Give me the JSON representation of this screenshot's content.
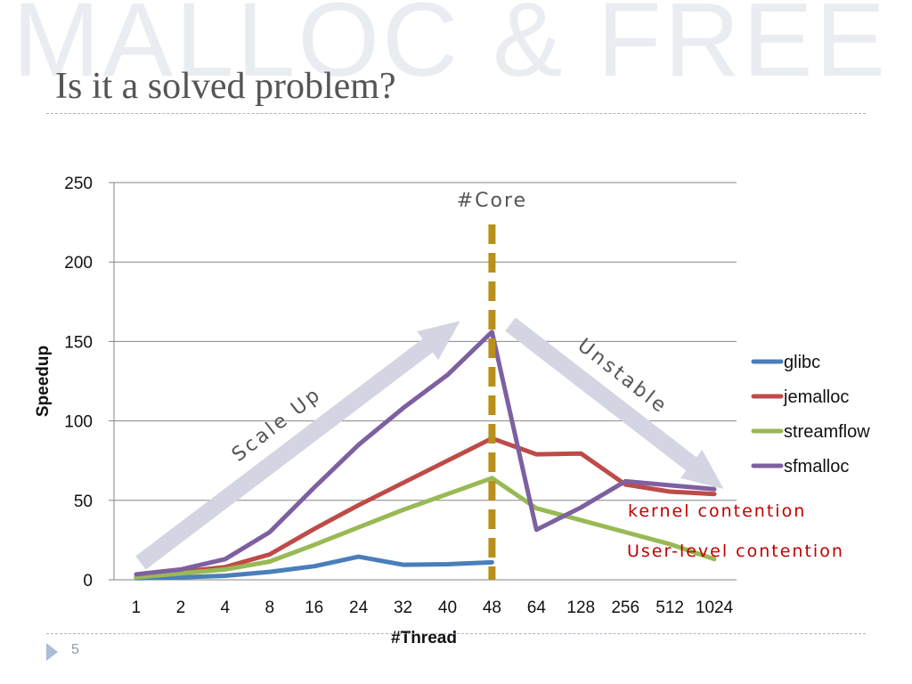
{
  "slide": {
    "watermark": "MALLOC & FREE",
    "title": "Is it a solved problem?",
    "page_number": "5"
  },
  "chart_data": {
    "type": "line",
    "categories": [
      "1",
      "2",
      "4",
      "8",
      "16",
      "24",
      "32",
      "40",
      "48",
      "64",
      "128",
      "256",
      "512",
      "1024"
    ],
    "ylim": [
      0,
      250
    ],
    "yticks": [
      "0",
      "50",
      "100",
      "150",
      "200",
      "250"
    ],
    "xlabel": "#Thread",
    "ylabel": "Speedup",
    "grid": "horizontal",
    "legend": "right",
    "series": [
      {
        "name": "glibc",
        "color": "#4a7ebb",
        "values": [
          1,
          1.5,
          2.5,
          5,
          8.5,
          14.5,
          9.5,
          9.8,
          11,
          null,
          null,
          null,
          null,
          null
        ]
      },
      {
        "name": "jemalloc",
        "color": "#be4b48",
        "values": [
          2,
          5,
          8,
          16,
          32,
          47,
          61,
          75,
          89,
          79,
          79.5,
          60,
          55.5,
          54
        ]
      },
      {
        "name": "streamflow",
        "color": "#98b954",
        "values": [
          1.5,
          4,
          6.5,
          11.5,
          22,
          33,
          44,
          54,
          64,
          45,
          37.5,
          30,
          22.5,
          13
        ]
      },
      {
        "name": "sfmalloc",
        "color": "#7d60a0",
        "values": [
          3.5,
          6.5,
          13,
          30,
          58,
          85,
          108,
          129,
          156,
          31.5,
          45.5,
          62,
          59.5,
          57
        ]
      }
    ],
    "annotations": {
      "core_line_at": "48",
      "core_label": "#Core",
      "scale_up_label": "Scale Up",
      "unstable_label": "Unstable",
      "kernel_note": "kernel contention",
      "user_note": "User-level contention"
    }
  }
}
